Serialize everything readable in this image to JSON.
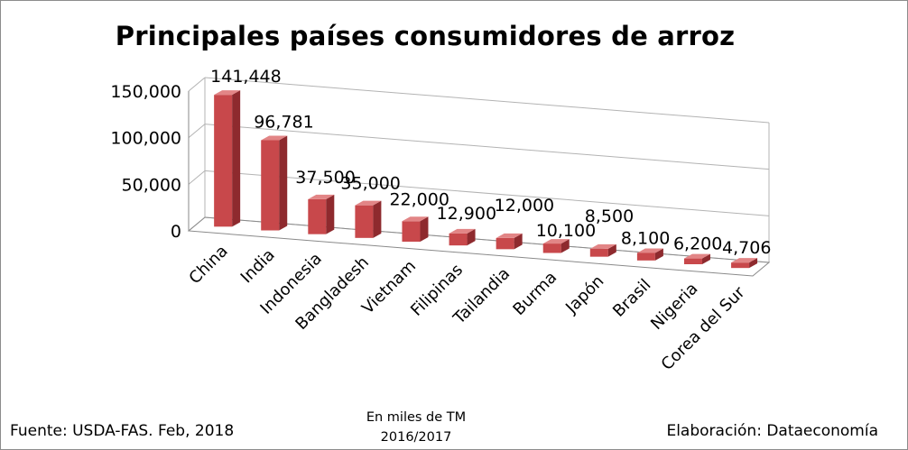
{
  "chart_data": {
    "type": "bar",
    "title": "Principales países consumidores de arroz",
    "categories": [
      "China",
      "India",
      "Indonesia",
      "Bangladesh",
      "Vietnam",
      "Filipinas",
      "Tailandia",
      "Burma",
      "Japón",
      "Brasil",
      "Nigeria",
      "Corea del Sur"
    ],
    "values": [
      141448,
      96781,
      37500,
      35000,
      22000,
      12900,
      12000,
      10100,
      8500,
      8100,
      6200,
      4706
    ],
    "value_labels": [
      "141,448",
      "96,781",
      "37,500",
      "35,000",
      "22,000",
      "12,900",
      "12,000",
      "10,100",
      "8,500",
      "8,100",
      "6,200",
      "4,706"
    ],
    "yticks": [
      "0",
      "50,000",
      "100,000",
      "150,000"
    ],
    "ylim": [
      0,
      150000
    ],
    "xlabel": "",
    "ylabel": "",
    "grid": true,
    "legend": "none",
    "colors": {
      "front": "#c8484b",
      "side": "#8e2a2e",
      "top": "#e28586"
    }
  },
  "footer": {
    "source": "Fuente:  USDA-FAS. Feb, 2018",
    "units_line1": "En miles de TM",
    "units_line2": "2016/2017",
    "credit": "Elaboración: Dataeconomía"
  }
}
